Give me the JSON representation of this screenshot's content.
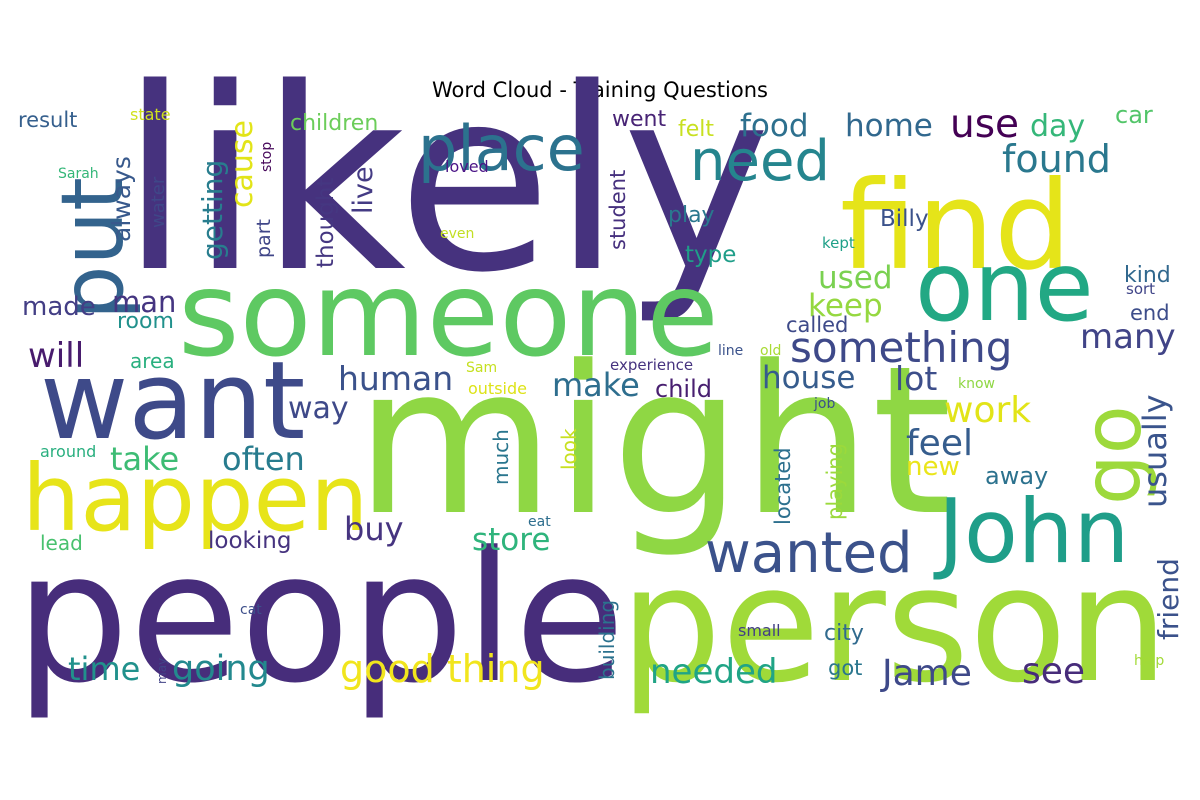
{
  "title": "Word Cloud - Training Questions",
  "words": [
    {
      "text": "likely",
      "color": "#46327e"
    },
    {
      "text": "might",
      "color": "#8fd744"
    },
    {
      "text": "people",
      "color": "#472d7b"
    },
    {
      "text": "person",
      "color": "#a0da39"
    },
    {
      "text": "someone",
      "color": "#5ec962"
    },
    {
      "text": "find",
      "color": "#e5e419"
    },
    {
      "text": "want",
      "color": "#3e4a89"
    },
    {
      "text": "happen",
      "color": "#e7e419"
    },
    {
      "text": "one",
      "color": "#22a884"
    },
    {
      "text": "put",
      "color": "#33638d"
    },
    {
      "text": "John",
      "color": "#1f9e89"
    },
    {
      "text": "go",
      "color": "#9dd93b"
    },
    {
      "text": "place",
      "color": "#2c728e"
    },
    {
      "text": "need",
      "color": "#25858e"
    },
    {
      "text": "wanted",
      "color": "#3b528b"
    },
    {
      "text": "something",
      "color": "#3e4989"
    },
    {
      "text": "good thing",
      "color": "#f1e51d"
    },
    {
      "text": "found",
      "color": "#2a788e"
    },
    {
      "text": "food",
      "color": "#2d708e"
    },
    {
      "text": "home",
      "color": "#31688e"
    },
    {
      "text": "use",
      "color": "#440154"
    },
    {
      "text": "day",
      "color": "#35b779"
    },
    {
      "text": "car",
      "color": "#52c569"
    },
    {
      "text": "result",
      "color": "#355f8d"
    },
    {
      "text": "state",
      "color": "#d0e11c"
    },
    {
      "text": "children",
      "color": "#6ccd5a"
    },
    {
      "text": "went",
      "color": "#482475"
    },
    {
      "text": "felt",
      "color": "#c8e020"
    },
    {
      "text": "always",
      "color": "#38598c"
    },
    {
      "text": "getting",
      "color": "#287d8e"
    },
    {
      "text": "cause",
      "color": "#e2e418"
    },
    {
      "text": "live",
      "color": "#443b84"
    },
    {
      "text": "water",
      "color": "#3f4788"
    },
    {
      "text": "thought",
      "color": "#453781"
    },
    {
      "text": "part",
      "color": "#404688"
    },
    {
      "text": "stop",
      "color": "#46075a"
    },
    {
      "text": "loved",
      "color": "#4a1486"
    },
    {
      "text": "Sarah",
      "color": "#35b779"
    },
    {
      "text": "even",
      "color": "#c2df23"
    },
    {
      "text": "student",
      "color": "#46307e"
    },
    {
      "text": "play",
      "color": "#2a788e"
    },
    {
      "text": "Billy",
      "color": "#3b528b"
    },
    {
      "text": "type",
      "color": "#1f9e89"
    },
    {
      "text": "kept",
      "color": "#1fa088"
    },
    {
      "text": "kind",
      "color": "#31688e"
    },
    {
      "text": "sort",
      "color": "#404588"
    },
    {
      "text": "end",
      "color": "#3d4d8a"
    },
    {
      "text": "made",
      "color": "#433e85"
    },
    {
      "text": "man",
      "color": "#453581"
    },
    {
      "text": "room",
      "color": "#21918c"
    },
    {
      "text": "used",
      "color": "#7ad151"
    },
    {
      "text": "keep",
      "color": "#95d840"
    },
    {
      "text": "called",
      "color": "#3e4a89"
    },
    {
      "text": "many",
      "color": "#414487"
    },
    {
      "text": "will",
      "color": "#481b6d"
    },
    {
      "text": "area",
      "color": "#2ab07f"
    },
    {
      "text": "human",
      "color": "#3b528b"
    },
    {
      "text": "Sam",
      "color": "#c5e021"
    },
    {
      "text": "experience",
      "color": "#46337f"
    },
    {
      "text": "line",
      "color": "#3b528b"
    },
    {
      "text": "old",
      "color": "#a8db34"
    },
    {
      "text": "make",
      "color": "#2e6e8e"
    },
    {
      "text": "lot",
      "color": "#3d4e8a"
    },
    {
      "text": "house",
      "color": "#365c8d"
    },
    {
      "text": "work",
      "color": "#e2e418"
    },
    {
      "text": "usually",
      "color": "#3a548c"
    },
    {
      "text": "know",
      "color": "#8fd744"
    },
    {
      "text": "outside",
      "color": "#dde318"
    },
    {
      "text": "child",
      "color": "#481f70"
    },
    {
      "text": "job",
      "color": "#3b518b"
    },
    {
      "text": "way",
      "color": "#3e4989"
    },
    {
      "text": "feel",
      "color": "#365d8d"
    },
    {
      "text": "new",
      "color": "#eae51a"
    },
    {
      "text": "away",
      "color": "#2c728e"
    },
    {
      "text": "around",
      "color": "#29af7f"
    },
    {
      "text": "take",
      "color": "#3dbc74"
    },
    {
      "text": "often",
      "color": "#287c8e"
    },
    {
      "text": "much",
      "color": "#2a768e"
    },
    {
      "text": "look",
      "color": "#c8e020"
    },
    {
      "text": "located",
      "color": "#2d708e"
    },
    {
      "text": "playing",
      "color": "#9bd93c"
    },
    {
      "text": "friend",
      "color": "#3b528b"
    },
    {
      "text": "buy",
      "color": "#463480"
    },
    {
      "text": "eat",
      "color": "#2e6e8e"
    },
    {
      "text": "store",
      "color": "#2fb47c"
    },
    {
      "text": "lead",
      "color": "#48c16e"
    },
    {
      "text": "looking",
      "color": "#46337f"
    },
    {
      "text": "building",
      "color": "#2c728e"
    },
    {
      "text": "cat",
      "color": "#3d4e8a"
    },
    {
      "text": "small",
      "color": "#423f85"
    },
    {
      "text": "city",
      "color": "#306a8e"
    },
    {
      "text": "time",
      "color": "#21918c"
    },
    {
      "text": "going",
      "color": "#23898e"
    },
    {
      "text": "may",
      "color": "#414487"
    },
    {
      "text": "needed",
      "color": "#20a486"
    },
    {
      "text": "got",
      "color": "#2a768e"
    },
    {
      "text": "Jame",
      "color": "#3e4989"
    },
    {
      "text": "see",
      "color": "#472c7a"
    },
    {
      "text": "help",
      "color": "#a2da37"
    }
  ]
}
